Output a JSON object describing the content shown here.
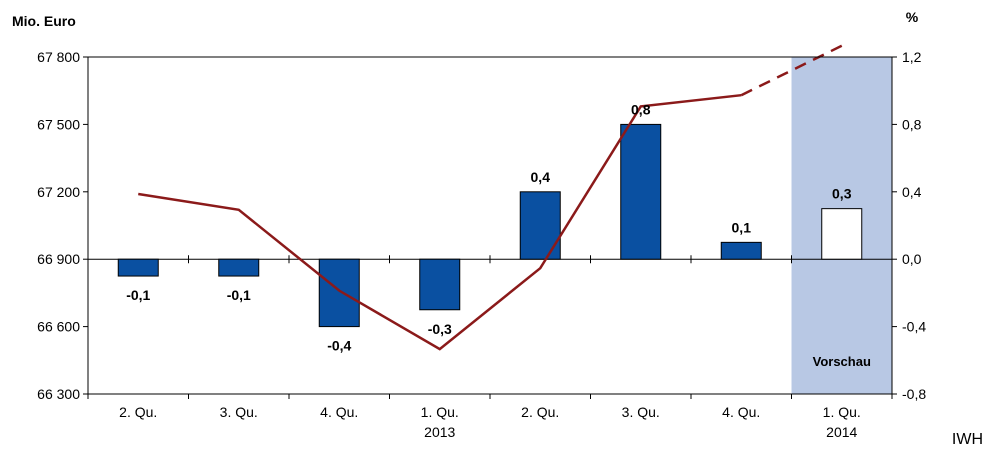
{
  "chart_data": {
    "type": "bar",
    "left_axis_unit": "Mio. Euro",
    "right_axis_unit": "%",
    "categories": [
      {
        "top": "2. Qu.",
        "bottom": ""
      },
      {
        "top": "3. Qu.",
        "bottom": ""
      },
      {
        "top": "4. Qu.",
        "bottom": ""
      },
      {
        "top": "1. Qu.",
        "bottom": "2013"
      },
      {
        "top": "2. Qu.",
        "bottom": ""
      },
      {
        "top": "3. Qu.",
        "bottom": ""
      },
      {
        "top": "4. Qu.",
        "bottom": ""
      },
      {
        "top": "1. Qu.",
        "bottom": "2014"
      }
    ],
    "bar_series": {
      "axis": "right",
      "values": [
        -0.1,
        -0.1,
        -0.4,
        -0.3,
        0.4,
        0.8,
        0.1,
        0.3
      ],
      "labels": [
        "-0,1",
        "-0,1",
        "-0,4",
        "-0,3",
        "0,4",
        "0,8",
        "0,1",
        "0,3"
      ],
      "forecast_index": 7
    },
    "line_series": {
      "axis": "left",
      "values": [
        67190,
        67120,
        66760,
        66500,
        66860,
        67580,
        67630,
        67850
      ],
      "dashed_from_index": 6
    },
    "left_axis": {
      "ylim": [
        66300,
        67800
      ],
      "ticks": [
        "66 300",
        "66 600",
        "66 900",
        "67 200",
        "67 500",
        "67 800"
      ]
    },
    "right_axis": {
      "ylim": [
        -0.8,
        1.2
      ],
      "ticks": [
        "-0,8",
        "-0,4",
        "0,0",
        "0,4",
        "0,8",
        "1,2"
      ]
    },
    "forecast_label": "Vorschau",
    "colors": {
      "bar": "#0a50a1",
      "forecast_bar": "#ffffff",
      "line": "#8b1a1a",
      "forecast_band": "#b8c8e4"
    }
  },
  "source_label": "IWH"
}
